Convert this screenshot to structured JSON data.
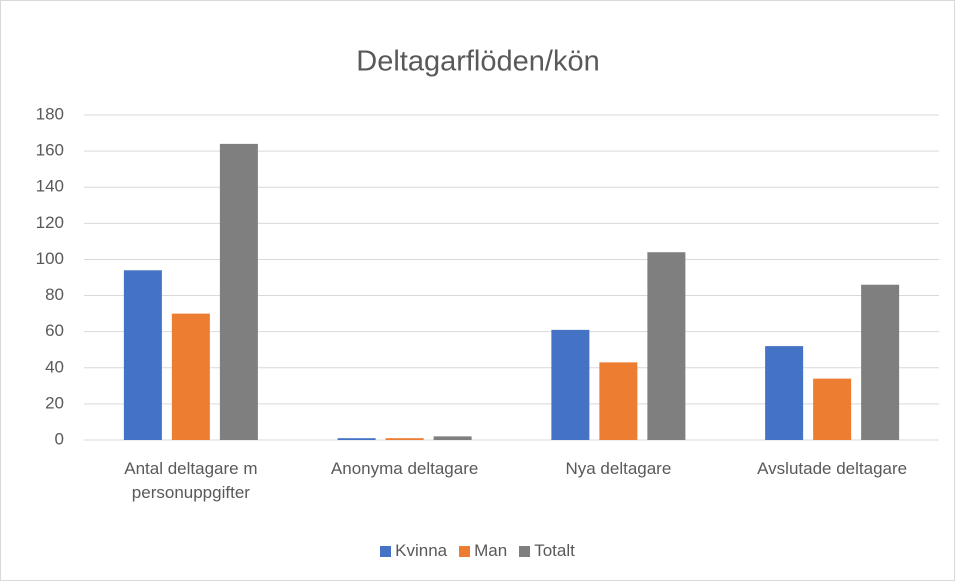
{
  "chart_data": {
    "type": "bar",
    "title": "Deltagarflöden/kön",
    "categories": [
      "Antal deltagare m personuppgifter",
      "Anonyma deltagare",
      "Nya deltagare",
      "Avslutade deltagare"
    ],
    "series": [
      {
        "name": "Kvinna",
        "color": "#4472c4",
        "values": [
          94,
          1,
          61,
          52
        ]
      },
      {
        "name": "Man",
        "color": "#ed7d31",
        "values": [
          70,
          1,
          43,
          34
        ]
      },
      {
        "name": "Totalt",
        "color": "#7f7f7f",
        "values": [
          164,
          2,
          104,
          86
        ]
      }
    ],
    "ylim": [
      0,
      180
    ],
    "yticks": [
      0,
      20,
      40,
      60,
      80,
      100,
      120,
      140,
      160,
      180
    ],
    "grid": true,
    "legend": "bottom"
  }
}
